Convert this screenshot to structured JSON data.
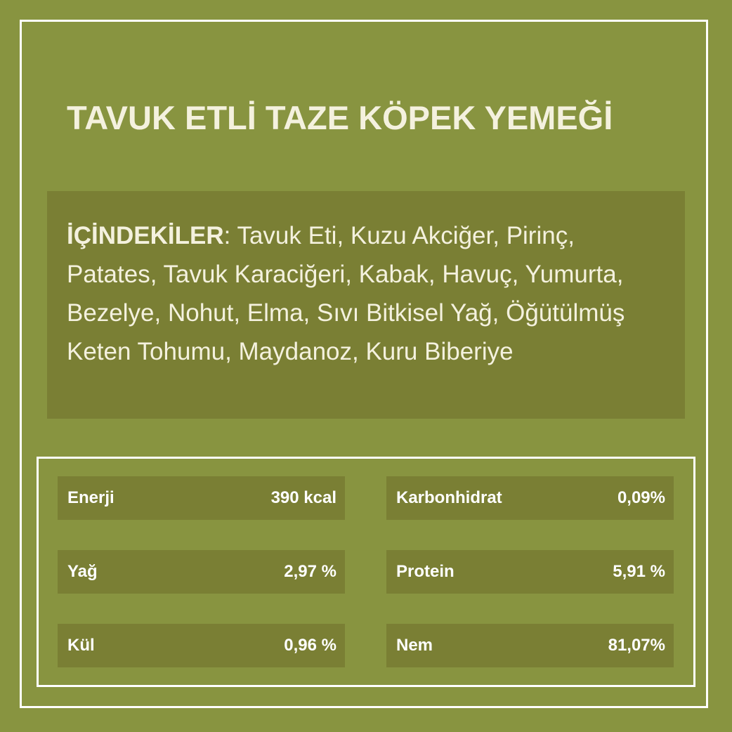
{
  "title": "TAVUK ETLİ TAZE KÖPEK YEMEĞİ",
  "ingredients": {
    "label": "İÇİNDEKİLER",
    "separator": ":",
    "text": " Tavuk Eti, Kuzu Akciğer, Pirinç, Patates, Tavuk Karaciğeri, Kabak, Havuç, Yumurta, Bezelye, Nohut, Elma, Sıvı Bitkisel Yağ, Öğütülmüş Keten Tohumu, Maydanoz, Kuru Biberiye"
  },
  "nutrition": [
    {
      "name": "Enerji",
      "value": "390 kcal"
    },
    {
      "name": "Karbonhidrat",
      "value": "0,09%"
    },
    {
      "name": "Yağ",
      "value": "2,97 %"
    },
    {
      "name": "Protein",
      "value": "5,91 %"
    },
    {
      "name": "Kül",
      "value": "0,96 %"
    },
    {
      "name": "Nem",
      "value": "81,07%"
    }
  ],
  "colors": {
    "background": "#889440",
    "panel": "#7a7f34",
    "text": "#f4f1de",
    "border": "#ffffff"
  }
}
